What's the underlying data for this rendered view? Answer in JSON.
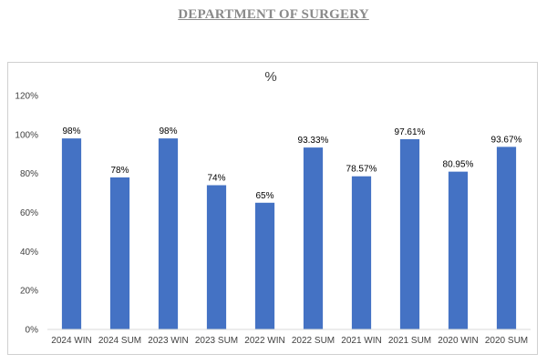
{
  "page": {
    "title": "DEPARTMENT OF SURGERY"
  },
  "chart_data": {
    "type": "bar",
    "title": "%",
    "categories": [
      "2024 WIN",
      "2024 SUM",
      "2023 WIN",
      "2023 SUM",
      "2022 WIN",
      "2022 SUM",
      "2021 WIN",
      "2021 SUM",
      "2020 WIN",
      "2020 SUM"
    ],
    "values": [
      98,
      78,
      98,
      74,
      65,
      93.33,
      78.57,
      97.61,
      80.95,
      93.67
    ],
    "data_labels": [
      "98%",
      "78%",
      "98%",
      "74%",
      "65%",
      "93.33%",
      "78.57%",
      "97.61%",
      "80.95%",
      "93.67%"
    ],
    "ylim": [
      0,
      120
    ],
    "yticks": [
      0,
      20,
      40,
      60,
      80,
      100,
      120
    ],
    "ytick_labels": [
      "0%",
      "20%",
      "40%",
      "60%",
      "80%",
      "100%",
      "120%"
    ],
    "xlabel": "",
    "ylabel": "",
    "grid": false,
    "legend": "none",
    "bar_color": "#4472C4"
  }
}
